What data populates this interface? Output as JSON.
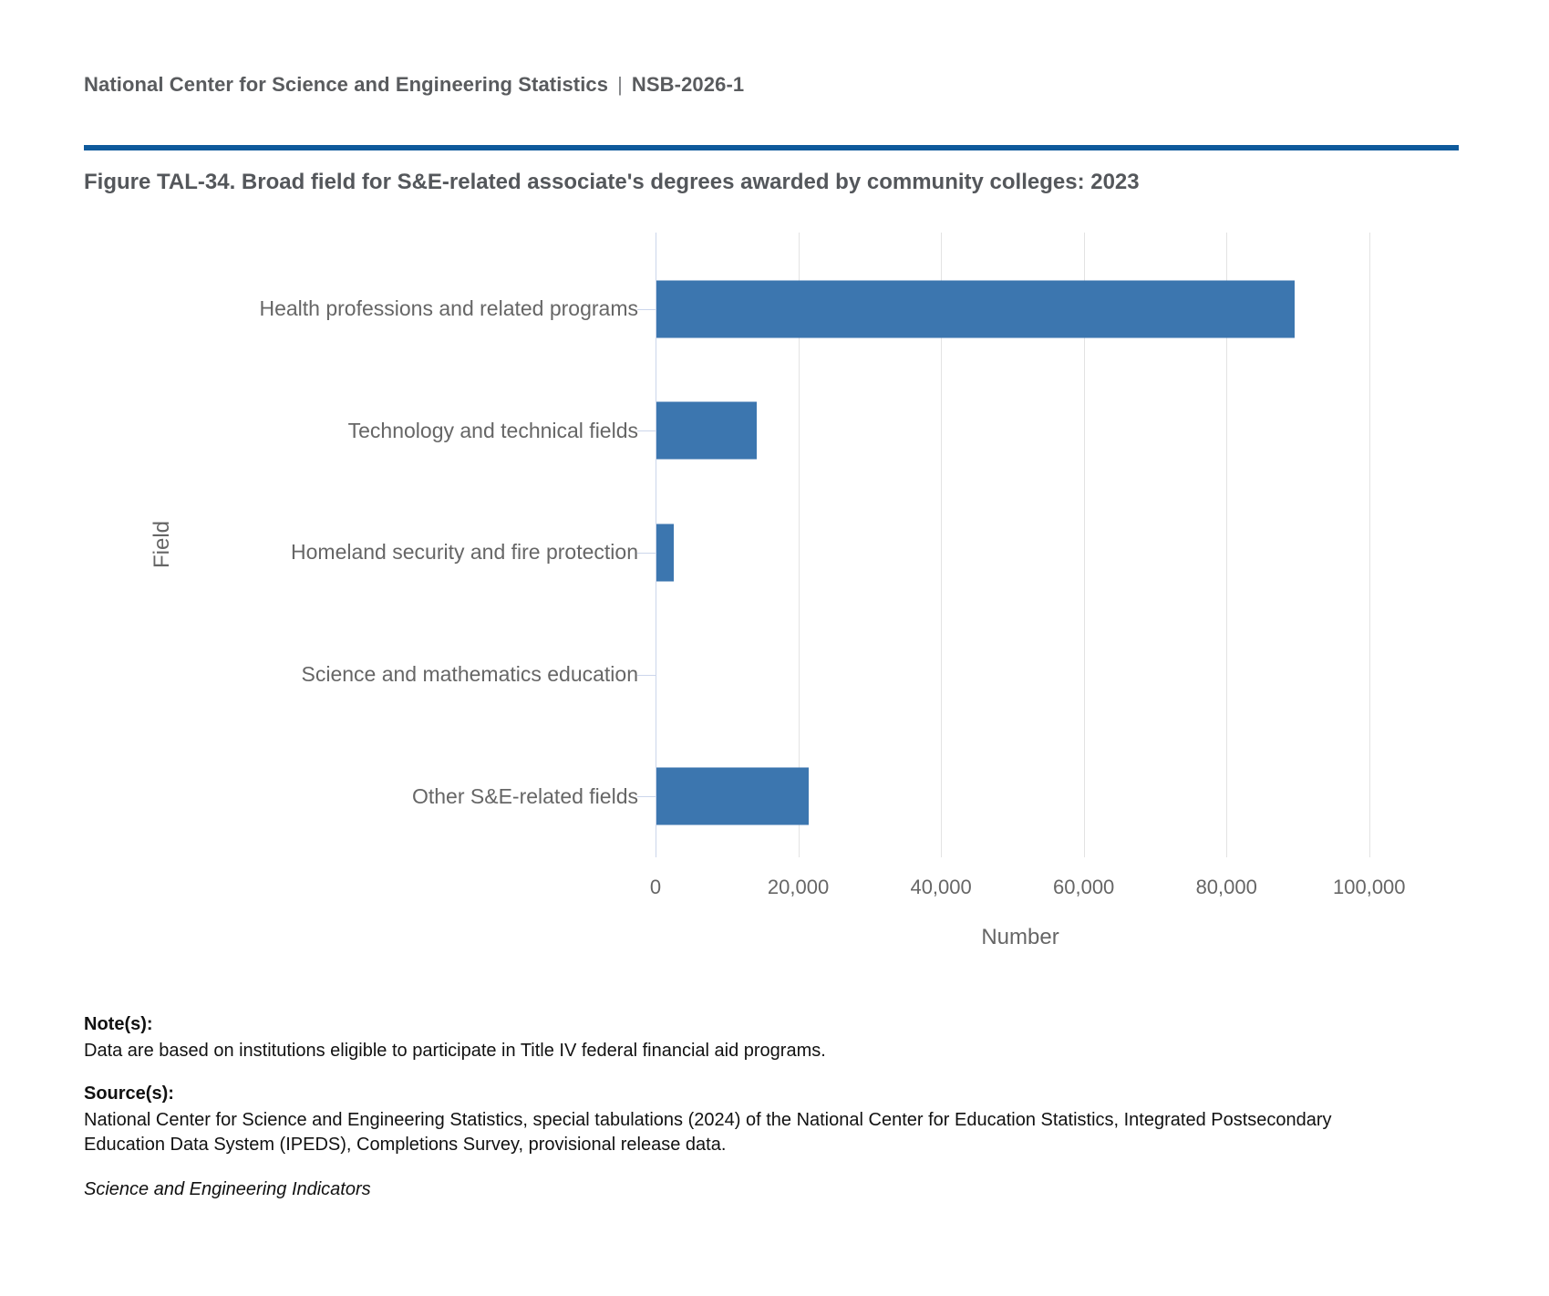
{
  "header": {
    "org": "National Center for Science and Engineering Statistics",
    "separator": "|",
    "report_id": "NSB-2026-1"
  },
  "figure": {
    "title": "Figure TAL-34. Broad field for S&E-related associate's degrees awarded by community colleges: 2023"
  },
  "chart_data": {
    "type": "bar",
    "orientation": "horizontal",
    "title": "Broad field for S&E-related associate's degrees awarded by community colleges: 2023",
    "categories": [
      "Health professions and related programs",
      "Technology and technical fields",
      "Homeland security and fire protection",
      "Science and mathematics education",
      "Other S&E-related fields"
    ],
    "values": [
      89600,
      14200,
      2600,
      100,
      21500
    ],
    "xlabel": "Number",
    "ylabel": "Field",
    "xlim": [
      0,
      102200
    ],
    "xticks": [
      0,
      20000,
      40000,
      60000,
      80000,
      100000
    ],
    "xtick_labels": [
      "0",
      "20,000",
      "40,000",
      "60,000",
      "80,000",
      "100,000"
    ],
    "grid": true,
    "legend": false
  },
  "notes": {
    "notes_label": "Note(s):",
    "notes_text": "Data are based on institutions eligible to participate in Title IV federal financial aid programs.",
    "sources_label": "Source(s):",
    "sources_text": "National Center for Science and Engineering Statistics, special tabulations (2024) of the National Center for Education Statistics, Integrated Postsecondary Education Data System (IPEDS), Completions Survey, provisional release data.",
    "attribution": "Science and Engineering Indicators"
  },
  "colors": {
    "bar": "#3c76af",
    "divider": "#0e5a9c",
    "gridline": "#e3e3e3",
    "axis_line": "#ccd6eb",
    "label_gray": "#666666"
  }
}
